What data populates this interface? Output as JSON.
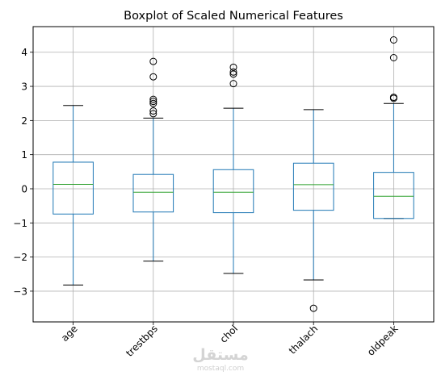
{
  "chart_data": {
    "type": "boxplot",
    "title": "Boxplot of Scaled Numerical Features",
    "xlabel": "",
    "ylabel": "",
    "ylim": [
      -3.9,
      4.75
    ],
    "yticks": [
      -3,
      -2,
      -1,
      0,
      1,
      2,
      3,
      4
    ],
    "ytick_labels": [
      "−3",
      "−2",
      "−1",
      "0",
      "1",
      "2",
      "3",
      "4"
    ],
    "grid": true,
    "categories": [
      "age",
      "trestbps",
      "chol",
      "thalach",
      "oldpeak"
    ],
    "boxes": [
      {
        "label": "age",
        "whisker_low": -2.82,
        "q1": -0.74,
        "median": 0.13,
        "q3": 0.78,
        "whisker_high": 2.44,
        "outliers": []
      },
      {
        "label": "trestbps",
        "whisker_low": -2.12,
        "q1": -0.68,
        "median": -0.1,
        "q3": 0.42,
        "whisker_high": 2.07,
        "outliers": [
          3.73,
          3.28,
          2.62,
          2.56,
          2.5,
          2.28,
          2.2
        ]
      },
      {
        "label": "chol",
        "whisker_low": -2.48,
        "q1": -0.7,
        "median": -0.1,
        "q3": 0.56,
        "whisker_high": 2.36,
        "outliers": [
          3.56,
          3.42,
          3.36,
          3.08
        ]
      },
      {
        "label": "thalach",
        "whisker_low": -2.67,
        "q1": -0.63,
        "median": 0.12,
        "q3": 0.75,
        "whisker_high": 2.32,
        "outliers": [
          -3.5
        ]
      },
      {
        "label": "oldpeak",
        "whisker_low": -0.87,
        "q1": -0.87,
        "median": -0.22,
        "q3": 0.48,
        "whisker_high": 2.5,
        "outliers": [
          4.36,
          3.84,
          2.68,
          2.65
        ]
      }
    ],
    "colors": {
      "box": "#1f77b4",
      "median": "#2ca02c",
      "whisker": "#1f77b4",
      "cap": "#000000",
      "outlier": "#000000",
      "grid": "#b0b0b0"
    }
  },
  "watermark": {
    "arabic": "مستقل",
    "latin": "mostaql.com"
  }
}
